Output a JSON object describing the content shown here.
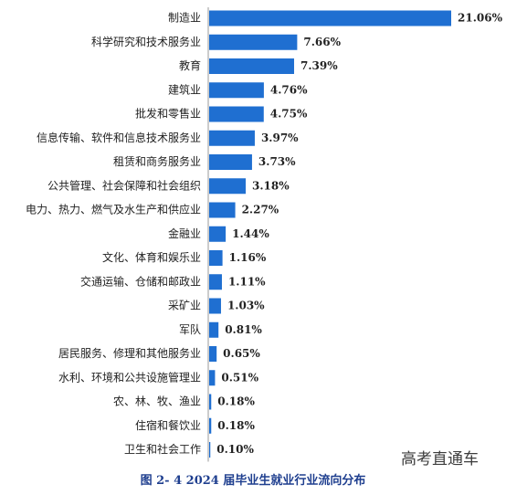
{
  "chart_data": {
    "type": "bar",
    "orientation": "horizontal",
    "categories": [
      "制造业",
      "科学研究和技术服务业",
      "教育",
      "建筑业",
      "批发和零售业",
      "信息传输、软件和信息技术服务业",
      "租赁和商务服务业",
      "公共管理、社会保障和社会组织",
      "电力、热力、燃气及水生产和供应业",
      "金融业",
      "文化、体育和娱乐业",
      "交通运输、仓储和邮政业",
      "采矿业",
      "军队",
      "居民服务、修理和其他服务业",
      "水利、环境和公共设施管理业",
      "农、林、牧、渔业",
      "住宿和餐饮业",
      "卫生和社会工作"
    ],
    "values": [
      21.06,
      7.66,
      7.39,
      4.76,
      4.75,
      3.97,
      3.73,
      3.18,
      2.27,
      1.44,
      1.16,
      1.11,
      1.03,
      0.81,
      0.65,
      0.51,
      0.18,
      0.18,
      0.1
    ],
    "value_labels": [
      "21.06%",
      "7.66%",
      "7.39%",
      "4.76%",
      "4.75%",
      "3.97%",
      "3.73%",
      "3.18%",
      "2.27%",
      "1.44%",
      "1.16%",
      "1.11%",
      "1.03%",
      "0.81%",
      "0.65%",
      "0.51%",
      "0.18%",
      "0.18%",
      "0.10%"
    ],
    "xlim": [
      0,
      21.06
    ],
    "bar_color": "#1f6fd1",
    "axis_color": "#9a9a9a",
    "grid": false,
    "legend": "none"
  },
  "caption": "图 2- 4  2024 届毕业生就业行业流向分布",
  "watermark": "高考直通车"
}
